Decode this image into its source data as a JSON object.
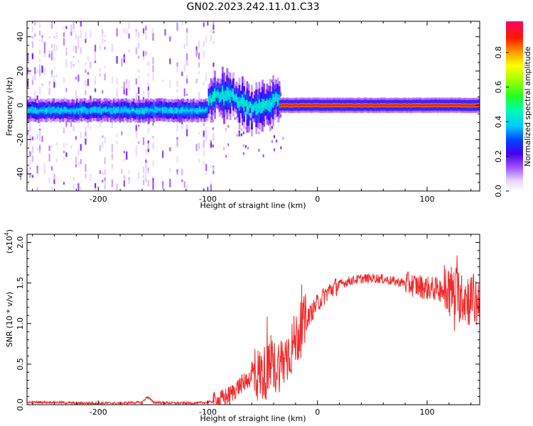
{
  "title": "GN02.2023.242.11.01.C33",
  "chart_data": [
    {
      "type": "heatmap",
      "xlabel": "Height of straight line (km)",
      "ylabel": "Frequency (Hz)",
      "xlim": [
        -265,
        148
      ],
      "ylim": [
        -50,
        49
      ],
      "xticks": [
        -200,
        -100,
        0,
        100
      ],
      "yticks": [
        -40,
        -20,
        0,
        20,
        40
      ],
      "colorbar": {
        "label": "Normalized spectral amplitude",
        "range": [
          0,
          0.98
        ],
        "ticks": [
          "0.0",
          "0.2",
          "0.4",
          "0.6",
          "0.8"
        ]
      },
      "ridge": {
        "description": "dominant frequency band near 0 Hz",
        "segments": [
          {
            "x": [
              -265,
              -100
            ],
            "center_hz": -3,
            "halfwidth_hz": 3,
            "amplitude": 0.4
          },
          {
            "x": [
              -100,
              -35
            ],
            "center_hz": 2,
            "halfwidth_hz": 7,
            "amplitude": 0.45
          },
          {
            "x": [
              -35,
              148
            ],
            "center_hz": 0,
            "halfwidth_hz": 2,
            "amplitude": 0.95
          }
        ]
      }
    },
    {
      "type": "line",
      "xlabel": "Height of straight line (km)",
      "ylabel": "SNR (10 * v/v)",
      "yscale_label": "(x10",
      "yscale_exp": "4",
      "yscale_close": ")",
      "xlim": [
        -265,
        148
      ],
      "ylim": [
        0,
        2.1
      ],
      "xticks": [
        -200,
        -100,
        0,
        100
      ],
      "yticks": [
        "0.0",
        "0.5",
        "1.0",
        "1.5",
        "2.0"
      ],
      "color": "#ee2b2b",
      "x": [
        -265,
        -240,
        -220,
        -200,
        -180,
        -160,
        -155,
        -150,
        -130,
        -110,
        -100,
        -90,
        -80,
        -70,
        -60,
        -50,
        -40,
        -30,
        -20,
        -10,
        0,
        10,
        20,
        30,
        40,
        50,
        60,
        70,
        80,
        90,
        100,
        110,
        120,
        130,
        140,
        148
      ],
      "y": [
        0.03,
        0.03,
        0.02,
        0.02,
        0.02,
        0.03,
        0.1,
        0.03,
        0.02,
        0.02,
        0.03,
        0.05,
        0.12,
        0.25,
        0.35,
        0.38,
        0.45,
        0.55,
        0.8,
        1.05,
        1.25,
        1.4,
        1.48,
        1.53,
        1.55,
        1.56,
        1.55,
        1.52,
        1.5,
        1.47,
        1.44,
        1.42,
        1.4,
        1.35,
        1.3,
        1.25
      ]
    }
  ]
}
